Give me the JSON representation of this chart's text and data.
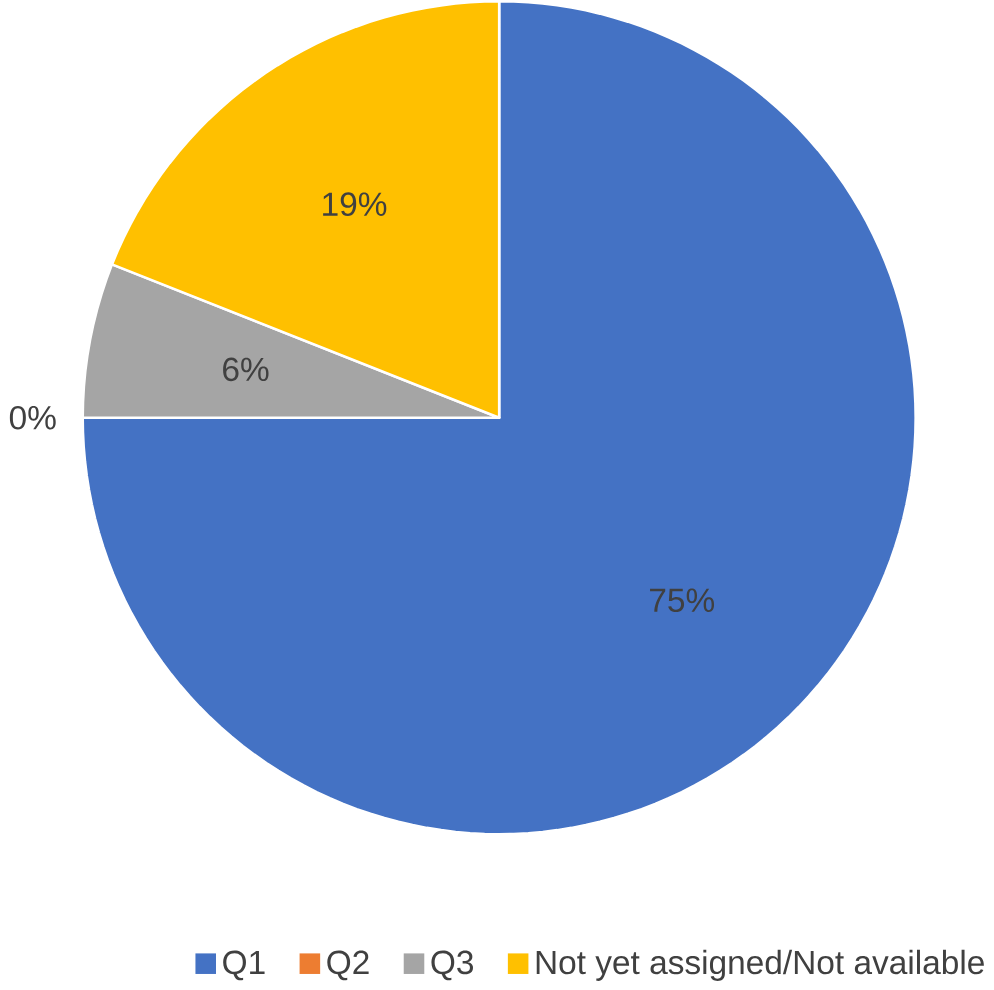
{
  "chart_data": {
    "type": "pie",
    "categories": [
      "Q1",
      "Q2",
      "Q3",
      "Not yet assigned/Not available"
    ],
    "values": [
      75,
      0,
      6,
      19
    ],
    "colors": [
      "#4472c4",
      "#ed7d31",
      "#a5a5a5",
      "#ffc000"
    ],
    "value_labels": [
      "75%",
      "0%",
      "6%",
      "19%"
    ],
    "legend": "bottom"
  }
}
